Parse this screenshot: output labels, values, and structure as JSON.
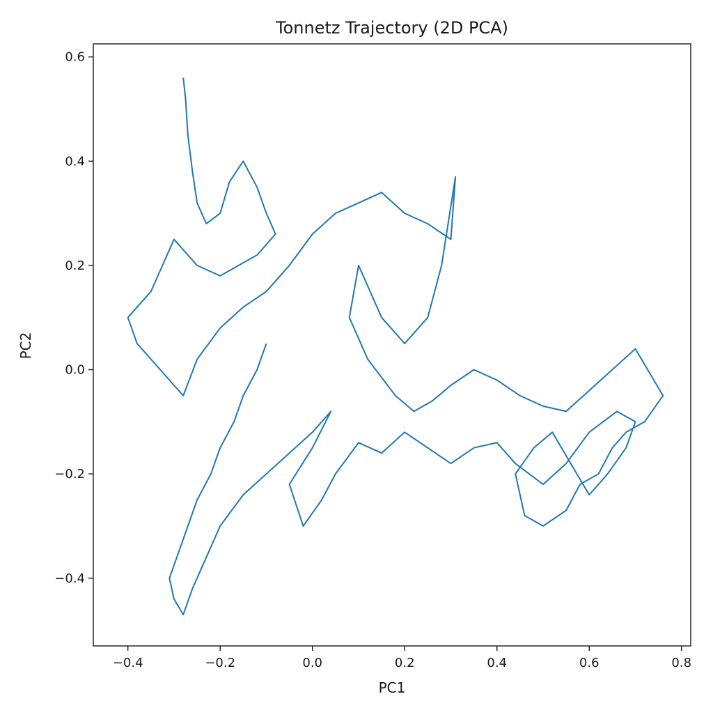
{
  "chart_data": {
    "type": "line",
    "title": "Tonnetz Trajectory (2D PCA)",
    "xlabel": "PC1",
    "ylabel": "PC2",
    "xlim": [
      -0.475,
      0.82
    ],
    "ylim": [
      -0.53,
      0.625
    ],
    "xticks": [
      -0.4,
      -0.2,
      0.0,
      0.2,
      0.4,
      0.6,
      0.8
    ],
    "xtick_labels": [
      "−0.4",
      "−0.2",
      "0.0",
      "0.2",
      "0.4",
      "0.6",
      "0.8"
    ],
    "yticks": [
      -0.4,
      -0.2,
      0.0,
      0.2,
      0.4,
      0.6
    ],
    "ytick_labels": [
      "−0.4",
      "−0.2",
      "0.0",
      "0.2",
      "0.4",
      "0.6"
    ],
    "grid": false,
    "legend": "none",
    "color": "#1f77b4",
    "series": [
      {
        "x": [
          -0.28,
          -0.275,
          -0.27,
          -0.26,
          -0.25,
          -0.23,
          -0.2,
          -0.18,
          -0.15,
          -0.12,
          -0.1,
          -0.08,
          -0.12,
          -0.16,
          -0.2,
          -0.25,
          -0.3,
          -0.35,
          -0.4,
          -0.38,
          -0.33,
          -0.28,
          -0.25,
          -0.2,
          -0.15,
          -0.1,
          -0.05,
          0.0,
          0.05,
          0.1,
          0.15,
          0.2,
          0.25,
          0.3,
          0.31,
          0.28,
          0.25,
          0.2,
          0.15,
          0.1,
          0.08,
          0.12,
          0.18,
          0.22,
          0.26,
          0.3,
          0.35,
          0.4,
          0.45,
          0.5,
          0.55,
          0.6,
          0.65,
          0.7,
          0.74,
          0.76,
          0.72,
          0.68,
          0.65,
          0.62,
          0.58,
          0.55,
          0.5,
          0.46,
          0.44,
          0.48,
          0.52,
          0.56,
          0.6,
          0.64,
          0.68,
          0.7,
          0.66,
          0.6,
          0.55,
          0.5,
          0.44,
          0.4,
          0.35,
          0.3,
          0.25,
          0.2,
          0.15,
          0.1,
          0.05,
          0.02,
          -0.02,
          -0.05,
          0.0,
          0.04,
          0.0,
          -0.05,
          -0.1,
          -0.15,
          -0.2,
          -0.23,
          -0.26,
          -0.28,
          -0.3,
          -0.31,
          -0.29,
          -0.27,
          -0.25,
          -0.22,
          -0.2,
          -0.17,
          -0.15,
          -0.12,
          -0.1
        ],
        "y": [
          0.56,
          0.52,
          0.45,
          0.38,
          0.32,
          0.28,
          0.3,
          0.36,
          0.4,
          0.35,
          0.3,
          0.26,
          0.22,
          0.2,
          0.18,
          0.2,
          0.25,
          0.15,
          0.1,
          0.05,
          0.0,
          -0.05,
          0.02,
          0.08,
          0.12,
          0.15,
          0.2,
          0.26,
          0.3,
          0.32,
          0.34,
          0.3,
          0.28,
          0.25,
          0.37,
          0.2,
          0.1,
          0.05,
          0.1,
          0.2,
          0.1,
          0.02,
          -0.05,
          -0.08,
          -0.06,
          -0.03,
          0.0,
          -0.02,
          -0.05,
          -0.07,
          -0.08,
          -0.04,
          0.0,
          0.04,
          -0.02,
          -0.05,
          -0.1,
          -0.12,
          -0.15,
          -0.2,
          -0.22,
          -0.27,
          -0.3,
          -0.28,
          -0.2,
          -0.15,
          -0.12,
          -0.18,
          -0.24,
          -0.2,
          -0.15,
          -0.1,
          -0.08,
          -0.12,
          -0.18,
          -0.22,
          -0.18,
          -0.14,
          -0.15,
          -0.18,
          -0.15,
          -0.12,
          -0.16,
          -0.14,
          -0.2,
          -0.25,
          -0.3,
          -0.22,
          -0.15,
          -0.08,
          -0.12,
          -0.16,
          -0.2,
          -0.24,
          -0.3,
          -0.36,
          -0.42,
          -0.47,
          -0.44,
          -0.4,
          -0.35,
          -0.3,
          -0.25,
          -0.2,
          -0.15,
          -0.1,
          -0.05,
          0.0,
          0.05
        ]
      }
    ]
  }
}
